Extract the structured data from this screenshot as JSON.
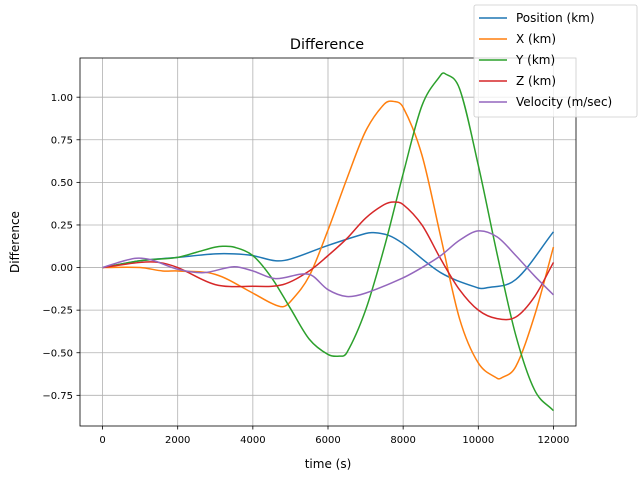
{
  "chart_data": {
    "type": "line",
    "title": "Difference",
    "xlabel": "time (s)",
    "ylabel": "Difference",
    "xlim": [
      -600,
      12600
    ],
    "ylim": [
      -0.93,
      1.23
    ],
    "xticks": [
      0,
      2000,
      4000,
      6000,
      8000,
      10000,
      12000
    ],
    "xtick_labels": [
      "0",
      "2000",
      "4000",
      "6000",
      "8000",
      "10000",
      "12000"
    ],
    "yticks": [
      -0.75,
      -0.5,
      -0.25,
      0.0,
      0.25,
      0.5,
      0.75,
      1.0
    ],
    "ytick_labels": [
      "−0.75",
      "−0.50",
      "−0.25",
      "0.00",
      "0.25",
      "0.50",
      "0.75",
      "1.00"
    ],
    "grid": true,
    "legend_position": "top-right",
    "series": [
      {
        "name": "Position (km)",
        "color": "#1f77b4",
        "x": [
          0,
          1000,
          2000,
          3000,
          3500,
          4000,
          4600,
          5000,
          6000,
          7000,
          7200,
          7600,
          8000,
          9000,
          10000,
          10200,
          11000,
          12000
        ],
        "y": [
          0.0,
          0.04,
          0.06,
          0.08,
          0.08,
          0.07,
          0.04,
          0.05,
          0.13,
          0.2,
          0.205,
          0.19,
          0.14,
          -0.03,
          -0.12,
          -0.12,
          -0.07,
          0.21
        ]
      },
      {
        "name": "X (km)",
        "color": "#ff7f0e",
        "x": [
          0,
          1000,
          1600,
          2000,
          3000,
          4000,
          4500,
          4800,
          5000,
          5500,
          6000,
          6500,
          7000,
          7500,
          7750,
          8000,
          8500,
          9000,
          9500,
          10000,
          10500,
          10600,
          11000,
          11500,
          12000
        ],
        "y": [
          0.0,
          0.0,
          -0.02,
          -0.02,
          -0.04,
          -0.15,
          -0.21,
          -0.23,
          -0.2,
          -0.05,
          0.22,
          0.52,
          0.8,
          0.96,
          0.975,
          0.94,
          0.66,
          0.18,
          -0.3,
          -0.56,
          -0.65,
          -0.65,
          -0.58,
          -0.28,
          0.12
        ]
      },
      {
        "name": "Y (km)",
        "color": "#2ca02c",
        "x": [
          0,
          1000,
          2000,
          2500,
          3000,
          3200,
          3500,
          4000,
          4500,
          5000,
          5500,
          6000,
          6300,
          6500,
          7000,
          7500,
          8000,
          8500,
          9000,
          9100,
          9500,
          10000,
          10500,
          11000,
          11500,
          12000
        ],
        "y": [
          0.0,
          0.04,
          0.06,
          0.09,
          0.12,
          0.125,
          0.12,
          0.07,
          -0.06,
          -0.24,
          -0.42,
          -0.51,
          -0.52,
          -0.5,
          -0.25,
          0.12,
          0.55,
          0.95,
          1.13,
          1.14,
          1.05,
          0.6,
          0.08,
          -0.4,
          -0.72,
          -0.84
        ]
      },
      {
        "name": "Z (km)",
        "color": "#d62728",
        "x": [
          0,
          1000,
          1500,
          2000,
          3000,
          4000,
          4800,
          5500,
          6000,
          6500,
          7000,
          7500,
          7750,
          8000,
          8500,
          9000,
          9500,
          10000,
          10500,
          11000,
          11500,
          12000
        ],
        "y": [
          0.0,
          0.03,
          0.03,
          0.0,
          -0.1,
          -0.11,
          -0.1,
          -0.02,
          0.07,
          0.17,
          0.29,
          0.37,
          0.385,
          0.37,
          0.25,
          0.05,
          -0.13,
          -0.25,
          -0.3,
          -0.29,
          -0.17,
          0.03
        ]
      },
      {
        "name": "Velocity (m/sec)",
        "color": "#9467bd",
        "x": [
          0,
          500,
          900,
          1300,
          2000,
          2700,
          3500,
          4000,
          4600,
          5500,
          6000,
          6500,
          7000,
          8000,
          8500,
          9000,
          9500,
          10000,
          10500,
          11000,
          11500,
          12000
        ],
        "y": [
          0.0,
          0.035,
          0.055,
          0.045,
          -0.01,
          -0.03,
          0.005,
          -0.02,
          -0.065,
          -0.04,
          -0.13,
          -0.17,
          -0.15,
          -0.06,
          0.0,
          0.07,
          0.16,
          0.215,
          0.18,
          0.07,
          -0.05,
          -0.16
        ]
      }
    ]
  }
}
